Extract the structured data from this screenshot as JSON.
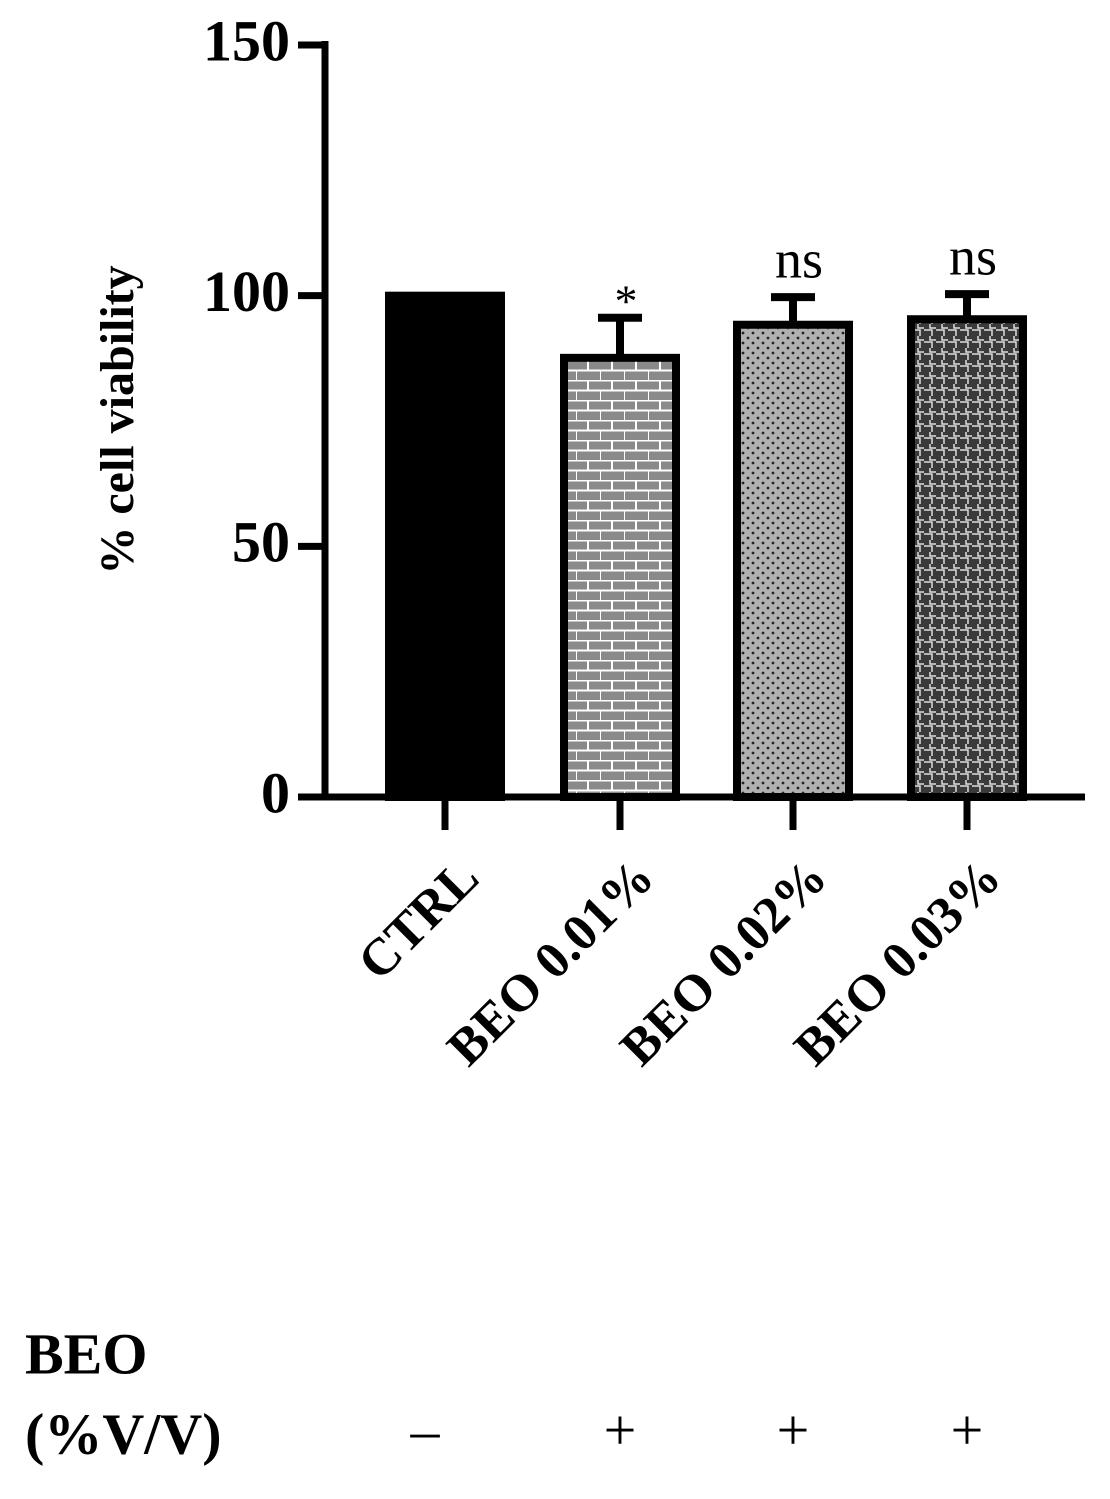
{
  "chart_data": {
    "type": "bar",
    "ylabel": "% cell viability",
    "categories": [
      "CTRL",
      "BEO 0.01%",
      "BEO 0.02%",
      "BEO 0.03%"
    ],
    "values": [
      100,
      87.6,
      94.2,
      95.3
    ],
    "errors": [
      null,
      8,
      5.5,
      5
    ],
    "significance": [
      null,
      "*",
      "ns",
      "ns"
    ],
    "colors": [
      "#000000",
      "#8a8a8a",
      "#b0b0b0",
      "#3a3a3a"
    ],
    "ylim": [
      0,
      150
    ],
    "yticks": [
      0,
      50,
      100,
      150
    ],
    "treatment": {
      "label": [
        "BEO",
        "(%V/V)"
      ],
      "signs": [
        "–",
        "+",
        "+",
        "+"
      ]
    }
  }
}
